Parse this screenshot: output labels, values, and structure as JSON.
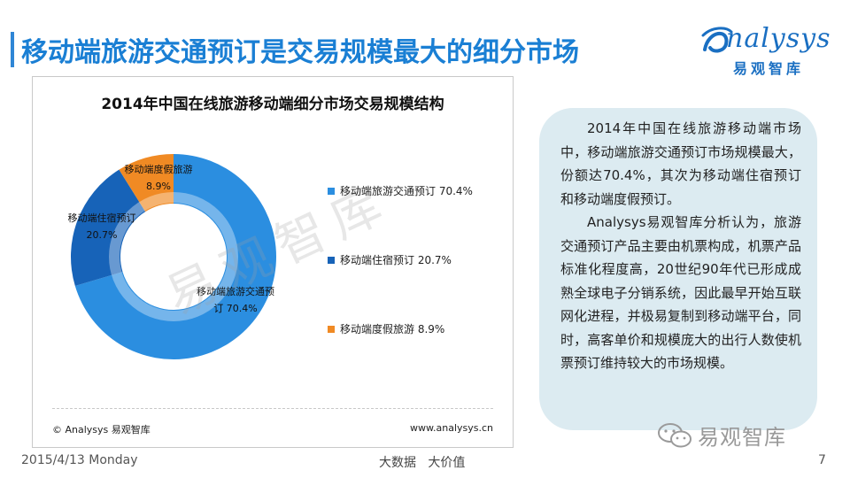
{
  "slide": {
    "title": "移动端旅游交通预订是交易规模最大的细分市场",
    "brand_logo_text": "nalysys",
    "brand_sub": "易观智库",
    "date": "2015/4/13 Monday",
    "center_footer": "大数据   大价值",
    "page_number": "7",
    "wechat_label": "易观智库",
    "accent_color": "#1a7fd4"
  },
  "chart_data": {
    "type": "pie",
    "title": "2014年中国在线旅游移动端细分市场交易规模结构",
    "categories": [
      "移动端旅游交通预订",
      "移动端住宿预订",
      "移动端度假旅游"
    ],
    "values": [
      70.4,
      20.7,
      8.9
    ],
    "unit": "%",
    "colors": [
      "#2b8ee0",
      "#1763b8",
      "#f08a24"
    ],
    "slice_labels": [
      {
        "lines": [
          "移动端旅游交通预",
          "订 70.4%"
        ]
      },
      {
        "lines": [
          "移动端住宿预订",
          "20.7%"
        ]
      },
      {
        "lines": [
          "移动端度假旅游",
          "8.9%"
        ]
      }
    ],
    "legend": [
      {
        "label": "移动端旅游交通预订 70.4%"
      },
      {
        "label": "移动端住宿预订 20.7%"
      },
      {
        "label": "移动端度假旅游 8.9%"
      }
    ],
    "legend_position": "right",
    "source_left": "© Analysys 易观智库",
    "source_right": "www.analysys.cn",
    "watermark": "易观智库"
  },
  "commentary": {
    "paragraphs": [
      "2014年中国在线旅游移动端市场中，移动端旅游交通预订市场规模最大，份额达70.4%，其次为移动端住宿预订和移动端度假预订。",
      "Analysys易观智库分析认为，旅游交通预订产品主要由机票构成，机票产品标准化程度高，20世纪90年代已形成成熟全球电子分销系统，因此最早开始互联网化进程，并极易复制到移动端平台，同时，高客单价和规模庞大的出行人数使机票预订维持较大的市场规模。"
    ]
  }
}
